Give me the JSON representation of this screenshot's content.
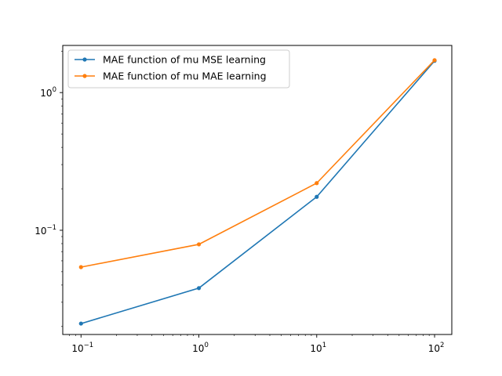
{
  "chart_data": {
    "type": "line",
    "title": "",
    "xlabel": "",
    "ylabel": "",
    "xscale": "log",
    "yscale": "log",
    "xlim": [
      0.07,
      140
    ],
    "ylim": [
      0.0175,
      2.2
    ],
    "grid": false,
    "legend_position": "top-left",
    "x": [
      0.1,
      1,
      10,
      100
    ],
    "series": [
      {
        "name": "MAE function of mu MSE learning",
        "color": "#1f77b4",
        "marker": "dot",
        "values": [
          0.021,
          0.038,
          0.175,
          1.7
        ]
      },
      {
        "name": "MAE function of mu MAE learning",
        "color": "#ff7f0e",
        "marker": "dot",
        "values": [
          0.054,
          0.079,
          0.22,
          1.72
        ]
      }
    ],
    "xticks": [
      {
        "value": 0.1,
        "base": "10",
        "exp": "−1"
      },
      {
        "value": 1,
        "base": "10",
        "exp": "0"
      },
      {
        "value": 10,
        "base": "10",
        "exp": "1"
      },
      {
        "value": 100,
        "base": "10",
        "exp": "2"
      }
    ],
    "yticks": [
      {
        "value": 0.1,
        "base": "10",
        "exp": "−1"
      },
      {
        "value": 1,
        "base": "10",
        "exp": "0"
      }
    ]
  }
}
